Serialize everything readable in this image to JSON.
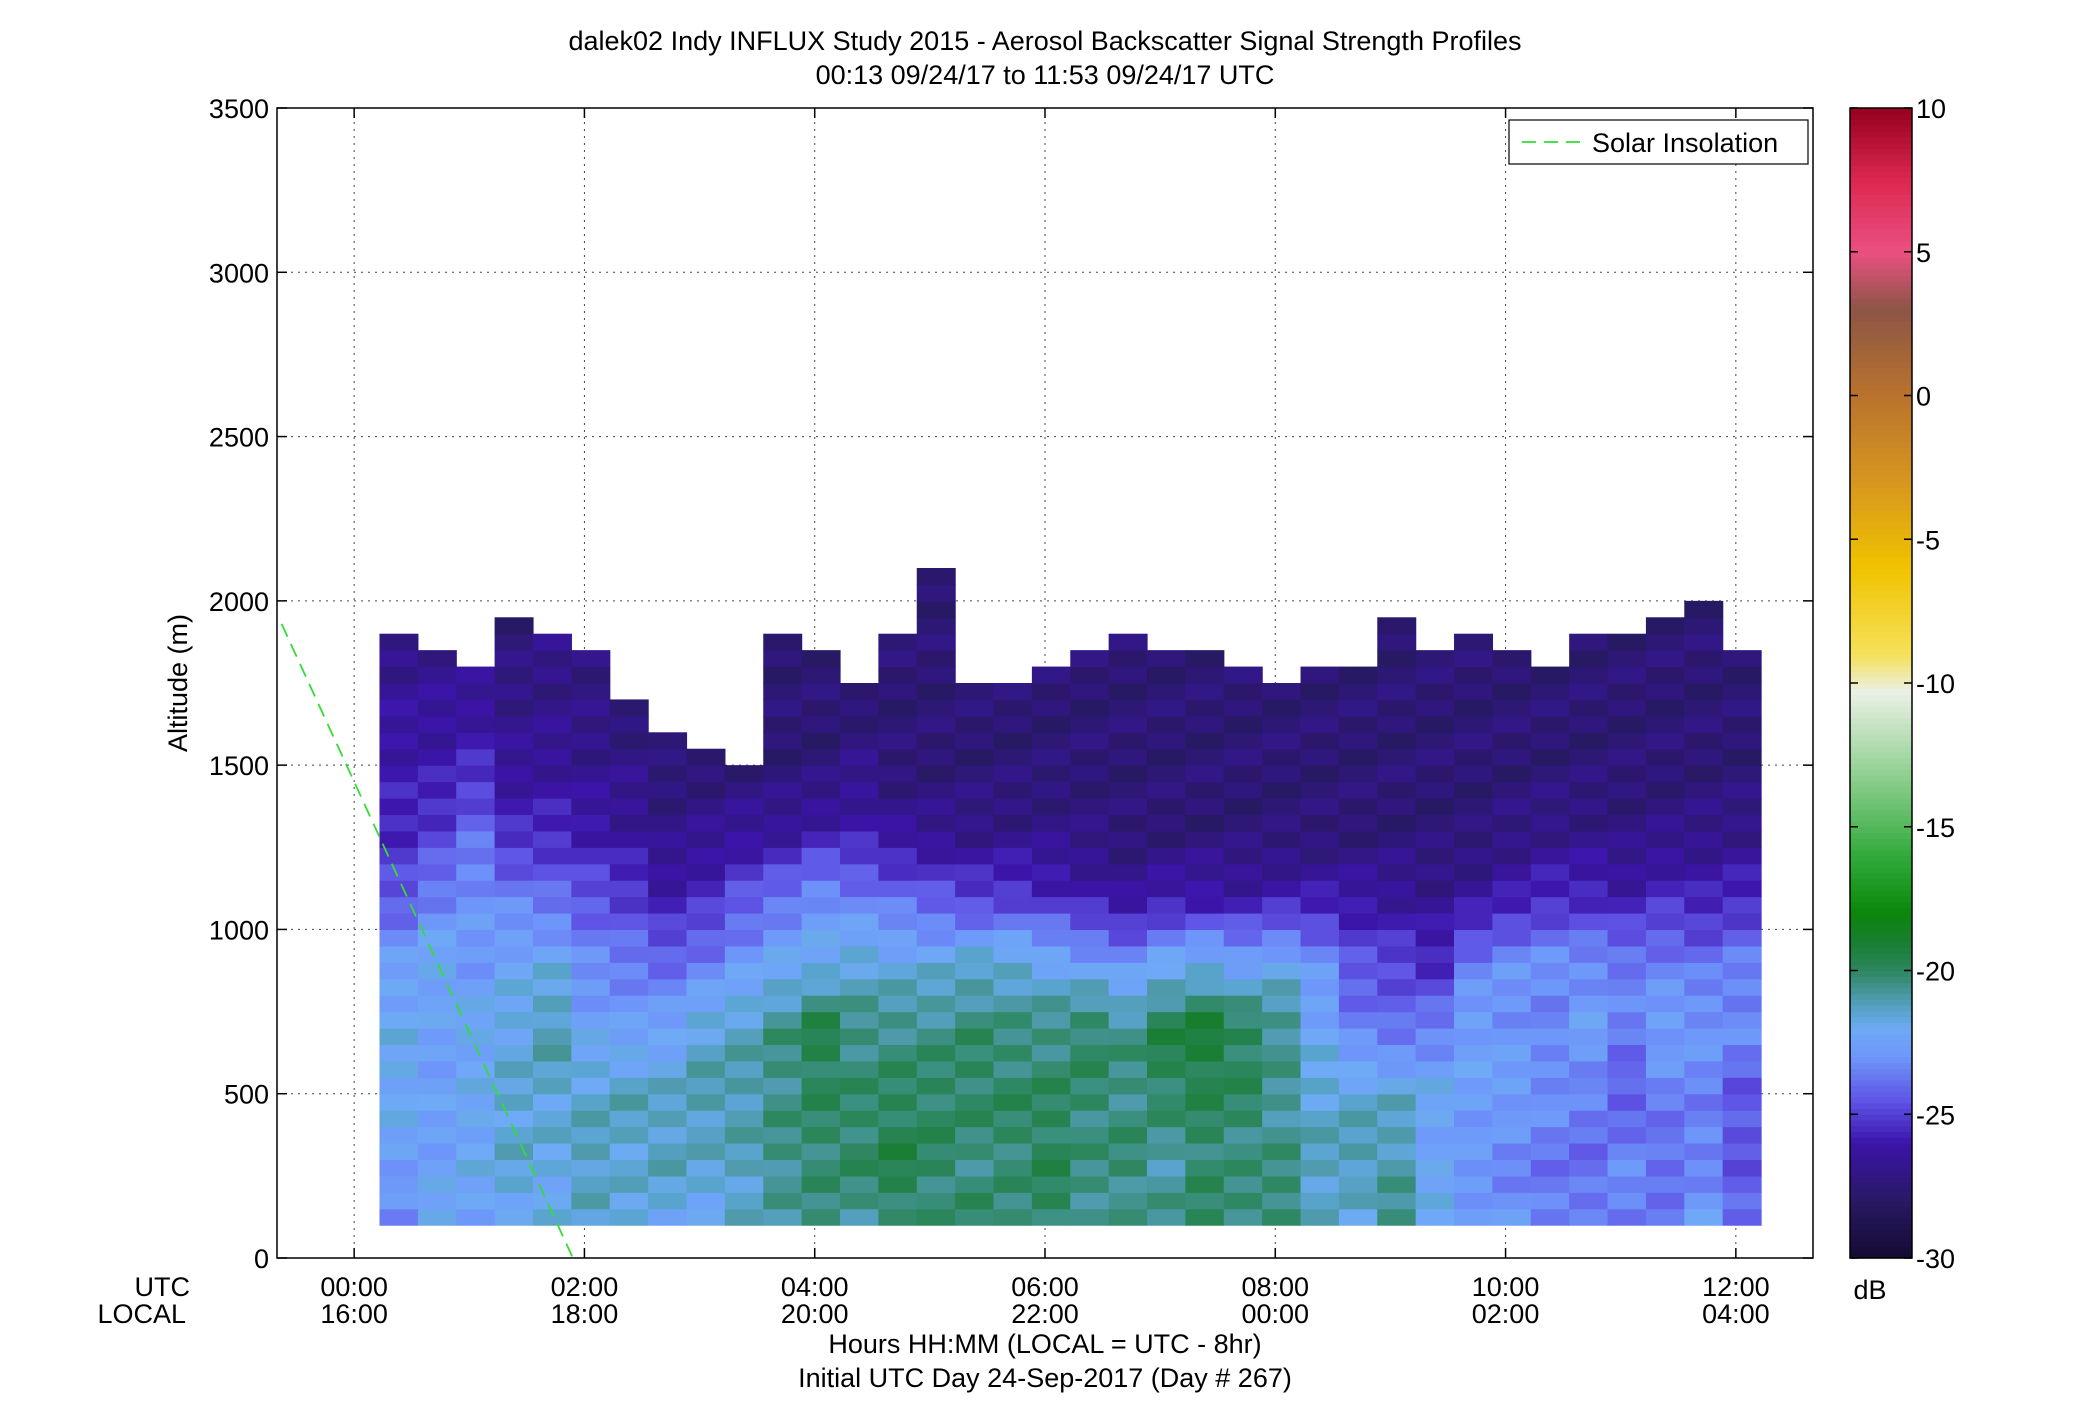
{
  "chart_data": {
    "type": "heatmap",
    "title": "dalek02 Indy INFLUX Study 2015 - Aerosol Backscatter Signal Strength Profiles",
    "subtitle": "00:13 09/24/17 to 11:53 09/24/17  UTC",
    "ylabel": "Altitude (m)",
    "xlabel": "Hours HH:MM  (LOCAL = UTC - 8hr)",
    "xlabel2": "Initial UTC Day 24-Sep-2017 (Day # 267)",
    "xlim": [
      -0.67,
      12.67
    ],
    "ylim": [
      0,
      3500
    ],
    "grid": true,
    "x_row_labels": [
      "UTC",
      "LOCAL"
    ],
    "x_ticks": [
      {
        "hour": 0,
        "utc": "00:00",
        "local": "16:00"
      },
      {
        "hour": 2,
        "utc": "02:00",
        "local": "18:00"
      },
      {
        "hour": 4,
        "utc": "04:00",
        "local": "20:00"
      },
      {
        "hour": 6,
        "utc": "06:00",
        "local": "22:00"
      },
      {
        "hour": 8,
        "utc": "08:00",
        "local": "00:00"
      },
      {
        "hour": 10,
        "utc": "10:00",
        "local": "02:00"
      },
      {
        "hour": 12,
        "utc": "12:00",
        "local": "04:00"
      }
    ],
    "y_ticks": [
      0,
      500,
      1000,
      1500,
      2000,
      2500,
      3000,
      3500
    ],
    "legend": {
      "entries": [
        "Solar Insolation"
      ],
      "placement": "top-right"
    },
    "solar_insolation": {
      "x": [
        -0.63,
        1.9
      ],
      "y": [
        1930,
        0
      ],
      "color": "#33dd33"
    },
    "colorbar": {
      "label": "dB",
      "min": -30,
      "max": 10,
      "ticks": [
        10,
        5,
        0,
        -5,
        -10,
        -15,
        -20,
        -25,
        -30
      ]
    },
    "grid_spec": {
      "x_start_hour": 0.22,
      "x_step_hour": 0.3333,
      "y_start_m": 100,
      "y_step_m": 50
    },
    "column_tops_m": [
      1900,
      1850,
      1800,
      1950,
      1900,
      1850,
      1700,
      1600,
      1550,
      1500,
      1900,
      1850,
      1750,
      1900,
      2100,
      1750,
      1750,
      1800,
      1850,
      1900,
      1850,
      1850,
      1800,
      1750,
      1800,
      1800,
      1950,
      1850,
      1900,
      1850,
      1800,
      1900,
      1900,
      1950,
      2000,
      1850
    ],
    "signal_profile_db": {
      "note_levels_m": [
        100,
        300,
        500,
        700,
        900,
        1100,
        1300,
        1500,
        1700,
        1900
      ],
      "columns": [
        [
          -23.5,
          -22.5,
          -22,
          -22,
          -22.5,
          -24.5,
          -25.5,
          -26,
          -26.5,
          -27
        ],
        [
          -22,
          -22.5,
          -22.5,
          -22.5,
          -22,
          -23.5,
          -25,
          -26,
          -26.5,
          -27
        ],
        [
          -22.5,
          -22,
          -22.2,
          -22,
          -22.8,
          -23,
          -24,
          -25.5,
          -26.5,
          -27
        ],
        [
          -22,
          -21.5,
          -21.5,
          -21.8,
          -22.2,
          -23.5,
          -25.5,
          -26.5,
          -27,
          -27.5
        ],
        [
          -22,
          -21.8,
          -21.5,
          -21,
          -22,
          -24,
          -25.5,
          -26.5,
          -27,
          -27
        ],
        [
          -21.5,
          -21.2,
          -21.4,
          -22.4,
          -23.2,
          -24.5,
          -26,
          -26.8,
          -27.2,
          -27
        ],
        [
          -21.8,
          -21.5,
          -21.2,
          -22.6,
          -23.6,
          -25,
          -26.5,
          -27,
          -27.5,
          -27.5
        ],
        [
          -22,
          -21.2,
          -21.4,
          -22.4,
          -24,
          -26,
          -27,
          -27.5,
          -27.5,
          -27.5
        ],
        [
          -22,
          -21.5,
          -21,
          -21.5,
          -23.5,
          -25.5,
          -26.8,
          -27.5,
          -27.5,
          -27.5
        ],
        [
          -21.5,
          -21.2,
          -21,
          -21.2,
          -22.8,
          -24.5,
          -26.5,
          -27.5,
          -27.5,
          -27.5
        ],
        [
          -21,
          -20.5,
          -20.5,
          -20.5,
          -22.2,
          -23.8,
          -26.5,
          -27.5,
          -27.5,
          -27.5
        ],
        [
          -20.5,
          -20.2,
          -20,
          -19.5,
          -22,
          -23,
          -26,
          -27.5,
          -27.5,
          -27.5
        ],
        [
          -20.8,
          -20,
          -20.2,
          -20.5,
          -21.5,
          -23.5,
          -26,
          -27,
          -27.5,
          -27.5
        ],
        [
          -20.2,
          -19.5,
          -20,
          -20.5,
          -21.8,
          -24,
          -26.5,
          -27.5,
          -27.5,
          -27.5
        ],
        [
          -20.5,
          -20,
          -20,
          -20.5,
          -21.8,
          -24.5,
          -26.8,
          -27.5,
          -27.5,
          -27.5
        ],
        [
          -20,
          -20.5,
          -20,
          -20.2,
          -21.5,
          -25,
          -27,
          -27.5,
          -27.5,
          -27.5
        ],
        [
          -20.5,
          -20.2,
          -20,
          -20.5,
          -21.5,
          -25,
          -27,
          -27.5,
          -27.5,
          -27.5
        ],
        [
          -20,
          -19.8,
          -20,
          -20.5,
          -22,
          -25.5,
          -27,
          -27.5,
          -27.5,
          -27.5
        ],
        [
          -20.5,
          -20.5,
          -20.2,
          -20,
          -22.5,
          -26,
          -27.2,
          -27.5,
          -27.5,
          -27.5
        ],
        [
          -20.8,
          -20.2,
          -20.5,
          -20.5,
          -23,
          -26.5,
          -27.5,
          -27.5,
          -27.5,
          -27.5
        ],
        [
          -20.5,
          -21,
          -20,
          -19.5,
          -22.2,
          -26,
          -27.5,
          -27.5,
          -27.5,
          -27.5
        ],
        [
          -20,
          -20.2,
          -19.8,
          -19,
          -22,
          -26,
          -27.5,
          -27.5,
          -27.5,
          -27.5
        ],
        [
          -20.2,
          -20.5,
          -20,
          -19.8,
          -22.5,
          -26.2,
          -27.5,
          -27.5,
          -27.5,
          -27.5
        ],
        [
          -20,
          -20.5,
          -20.8,
          -20.5,
          -22,
          -26,
          -27.5,
          -27.5,
          -27.5,
          -27.5
        ],
        [
          -21.5,
          -21.2,
          -21.5,
          -22.2,
          -23,
          -26,
          -27.5,
          -27.5,
          -27.5,
          -27.5
        ],
        [
          -21.8,
          -21,
          -21.5,
          -23.5,
          -24.5,
          -26.2,
          -27.5,
          -27.5,
          -27.5,
          -27.5
        ],
        [
          -20.5,
          -21,
          -21.5,
          -24,
          -24.8,
          -26.5,
          -27.5,
          -27.5,
          -27.5,
          -27.5
        ],
        [
          -21.5,
          -22.5,
          -22,
          -23.5,
          -25.5,
          -26.8,
          -27.5,
          -27.5,
          -27.5,
          -27.5
        ],
        [
          -22.5,
          -23,
          -22.5,
          -22.5,
          -23.5,
          -26.5,
          -27.5,
          -27.5,
          -27.5,
          -27.5
        ],
        [
          -22.8,
          -23.5,
          -22.5,
          -23,
          -23,
          -26,
          -27.2,
          -27.5,
          -27.5,
          -27.5
        ],
        [
          -23.5,
          -23.8,
          -23,
          -23.5,
          -23,
          -25.5,
          -27,
          -27.5,
          -27.5,
          -27.5
        ],
        [
          -23.5,
          -24,
          -23.5,
          -22.5,
          -23.2,
          -25.5,
          -27,
          -27.5,
          -27.5,
          -27.5
        ],
        [
          -23.5,
          -23.2,
          -24.5,
          -23.5,
          -23.5,
          -26,
          -27.2,
          -27.5,
          -27.5,
          -27.5
        ],
        [
          -23.5,
          -24,
          -23.5,
          -22.5,
          -23.5,
          -25.5,
          -27,
          -27.5,
          -27.5,
          -27.5
        ],
        [
          -22.5,
          -23.5,
          -23.5,
          -22.8,
          -23.8,
          -25.8,
          -27,
          -27.5,
          -27.5,
          -27.5
        ],
        [
          -24,
          -24.5,
          -24.5,
          -23.2,
          -23.5,
          -25.5,
          -27,
          -27.5,
          -27.5,
          -27.5
        ]
      ]
    }
  }
}
